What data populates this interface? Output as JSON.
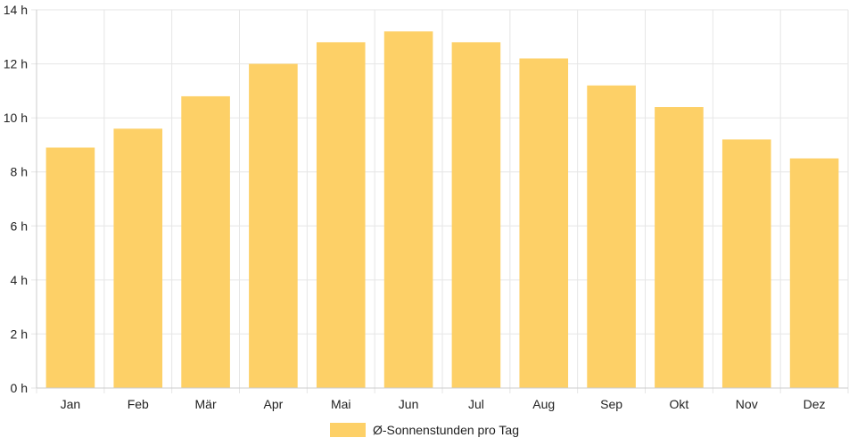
{
  "chart_data": {
    "type": "bar",
    "categories": [
      "Jan",
      "Feb",
      "Mär",
      "Apr",
      "Mai",
      "Jun",
      "Jul",
      "Aug",
      "Sep",
      "Okt",
      "Nov",
      "Dez"
    ],
    "series": [
      {
        "name": "Ø-Sonnenstunden pro Tag",
        "values": [
          8.9,
          9.6,
          10.8,
          12.0,
          12.8,
          13.2,
          12.8,
          12.2,
          11.2,
          10.4,
          9.2,
          8.5
        ]
      }
    ],
    "y_ticks": [
      "0 h",
      "2 h",
      "4 h",
      "6 h",
      "8 h",
      "10 h",
      "12 h",
      "14 h"
    ],
    "ylim": [
      0,
      14
    ],
    "grid": true,
    "legend_position": "bottom",
    "colors": {
      "bar": "#fdd067",
      "grid": "#e6e6e6",
      "axis": "#cccccc"
    }
  }
}
